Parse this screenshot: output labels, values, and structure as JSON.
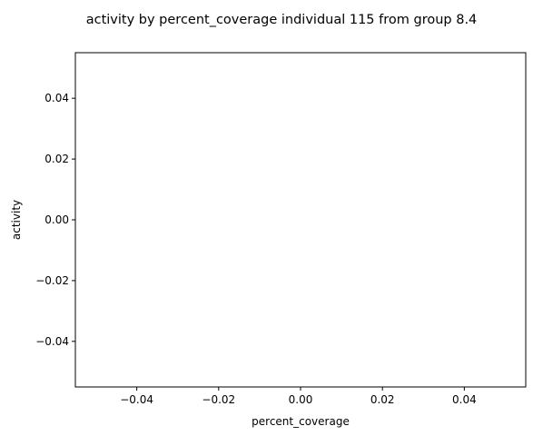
{
  "chart_data": {
    "type": "line",
    "title": "activity by percent_coverage individual 115 from group 8.4",
    "xlabel": "percent_coverage",
    "ylabel": "activity",
    "xlim": [
      -0.055,
      0.055
    ],
    "ylim": [
      -0.055,
      0.055
    ],
    "xticks": [
      -0.04,
      -0.02,
      0.0,
      0.02,
      0.04
    ],
    "xtick_labels": [
      "−0.04",
      "−0.02",
      "0.00",
      "0.02",
      "0.04"
    ],
    "yticks": [
      -0.04,
      -0.02,
      0.0,
      0.02,
      0.04
    ],
    "ytick_labels": [
      "−0.04",
      "−0.02",
      "0.00",
      "0.02",
      "0.04"
    ],
    "grid": false,
    "legend": "none",
    "series": [
      {
        "x": [],
        "y": []
      }
    ]
  }
}
